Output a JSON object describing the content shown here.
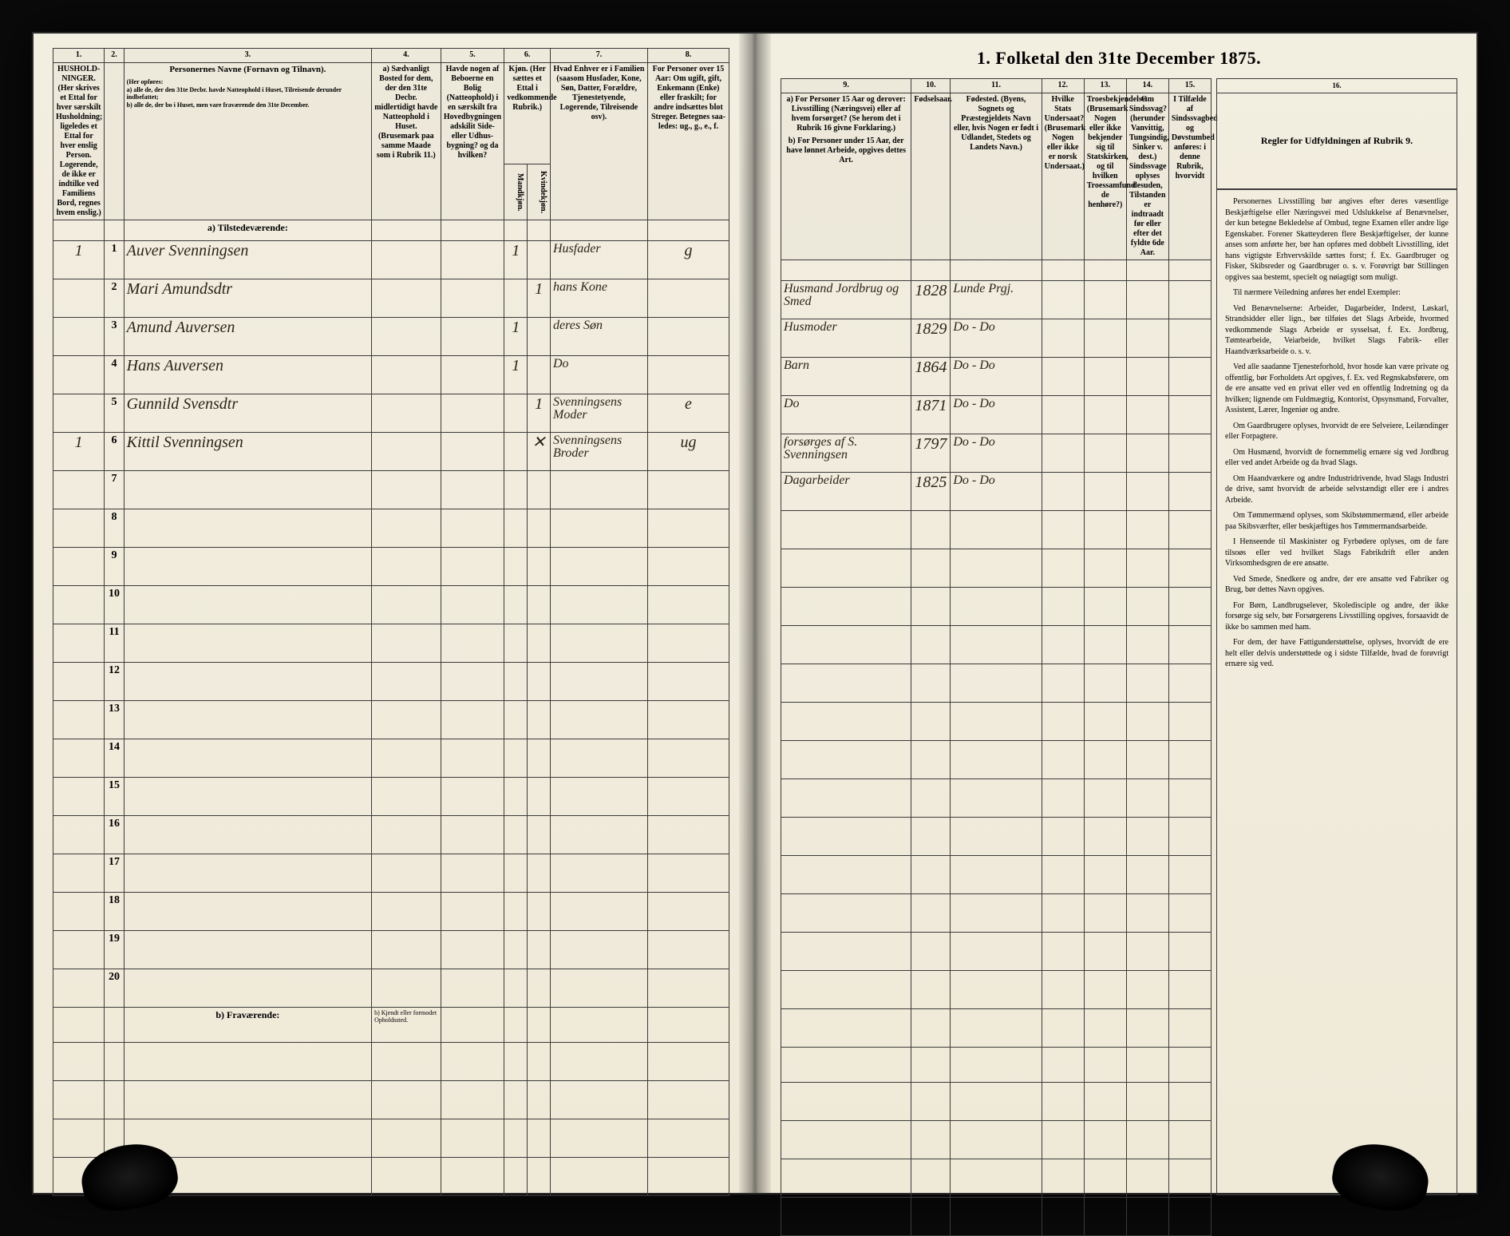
{
  "doc": {
    "title": "1. Folketal den 31te December 1875.",
    "section_a": "a) Tilstedeværende:",
    "section_b": "b) Fraværende:",
    "section_b_note": "b) Kjendt eller formodet Opholdssted."
  },
  "cols": {
    "c1": "1.",
    "c2": "2.",
    "c3": "3.",
    "c4": "4.",
    "c5": "5.",
    "c6": "6.",
    "c7": "7.",
    "c8": "8.",
    "c9": "9.",
    "c10": "10.",
    "c11": "11.",
    "c12": "12.",
    "c13": "13.",
    "c14": "14.",
    "c15": "15.",
    "c16": "16."
  },
  "headers": {
    "h1": "HUSHOLD-NINGER. (Her skrives et Ettal for hver særskilt Husholdning; ligeledes et Ettal for hver enslig Person. Logerende, de ikke er indtilke ved Familiens Bord, regnes hvem enslig.)",
    "h3_title": "Personernes Navne (Fornavn og Tilnavn).",
    "h3_sub": "(Her opføres:\na) alle de, der den 31te Decbr. havde Natteophold i Huset, Tilreisende derunder indbefattet;\nb) alle de, der bo i Huset, men vare fraværende den 31te December.",
    "h4": "a) Sædvanligt Bosted for dem, der den 31te Decbr. midlertidigt havde Natteophold i Huset. (Brusemark paa samme Maade som i Rubrik 11.)",
    "h5": "Havde nogen af Beboerne en Bolig (Natteophold) i en særskilt fra Hovedbygningen adskilit Side- eller Udhus-bygning? og da hvilken?",
    "h6": "Kjøn. (Her sættes et Ettal i vedkommende Rubrik.)",
    "h6a": "Mandkjøn.",
    "h6b": "Kvindekjøn.",
    "h7": "Hvad Enhver er i Familien (saasom Husfader, Kone, Søn, Datter, Forældre, Tjenestetyende, Logerende, Tilreisende osv).",
    "h8": "For Personer over 15 Aar: Om ugift, gift, Enkemann (Enke) eller fraskilt; for andre indsættes blot Streger. Betegnes saa-ledes: ug., g., e., f.",
    "h9a": "a) For Personer 15 Aar og derover: Livsstilling (Næringsvei) eller af hvem forsørget? (Se herom det i Rubrik 16 givne Forklaring.)",
    "h9b": "b) For Personer under 15 Aar, der have lønnet Arbeide, opgives dettes Art.",
    "h10": "Fødselsaar.",
    "h11": "Fødested. (Byens, Sognets og Præstegjeldets Navn eller, hvis Nogen er født i Udlandet, Stedets og Landets Navn.)",
    "h12": "Hvilke Stats Undersaat? (Brusemark Nogen eller ikke er norsk Undersaat.)",
    "h13": "Troesbekjendelse. (Brusemark Nogen eller ikke bekjender sig til Statskirken, og til hvilken Troessamfund de henhøre?)",
    "h14": "Om Sindssvag? (herunder Vanvittig, Tungsindig, Sinker v. dest.) Sindssvage oplyses desuden, Tilstanden er indtraadt før eller efter det fyldte 6de Aar.",
    "h15": "I Tilfælde af Sindssvagbed og Døvstumbed anføres: i denne Rubrik, hvorvidt",
    "h16": "Regler for Udfyldningen af Rubrik 9."
  },
  "rows": [
    {
      "hh": "1",
      "n": "1",
      "name": "Auver Svenningsen",
      "sex_m": "1",
      "sex_f": "",
      "rel": "Husfader",
      "civ": "g",
      "occ": "Husmand Jordbrug og Smed",
      "year": "1828",
      "place": "Lunde Prgj."
    },
    {
      "hh": "",
      "n": "2",
      "name": "Mari Amundsdtr",
      "sex_m": "",
      "sex_f": "1",
      "rel": "hans Kone",
      "civ": "",
      "occ": "Husmoder",
      "year": "1829",
      "place": "Do - Do"
    },
    {
      "hh": "",
      "n": "3",
      "name": "Amund Auversen",
      "sex_m": "1",
      "sex_f": "",
      "rel": "deres Søn",
      "civ": "",
      "occ": "Barn",
      "year": "1864",
      "place": "Do - Do"
    },
    {
      "hh": "",
      "n": "4",
      "name": "Hans Auversen",
      "sex_m": "1",
      "sex_f": "",
      "rel": "Do",
      "civ": "",
      "occ": "Do",
      "year": "1871",
      "place": "Do - Do"
    },
    {
      "hh": "",
      "n": "5",
      "name": "Gunnild Svensdtr",
      "sex_m": "",
      "sex_f": "1",
      "rel": "Svenningsens Moder",
      "civ": "e",
      "occ": "forsørges af S. Svenningsen",
      "year": "1797",
      "place": "Do - Do"
    },
    {
      "hh": "1",
      "n": "6",
      "name": "Kittil Svenningsen",
      "sex_m": "",
      "sex_f": "✕",
      "rel": "Svenningsens Broder",
      "civ": "ug",
      "occ": "Dagarbeider",
      "year": "1825",
      "place": "Do - Do"
    }
  ],
  "rownums": [
    "7",
    "8",
    "9",
    "10",
    "11",
    "12",
    "13",
    "14",
    "15",
    "16",
    "17",
    "18",
    "19",
    "20"
  ],
  "instructions": {
    "p1": "Personernes Livsstilling bør angives efter deres væsentlige Beskjæftigelse eller Næringsvei med Udslukkelse af Benævnelser, der kun betegne Bekledelse af Ombud, tegne Examen eller andre lige Egenskaber. Forener Skatteyderen flere Beskjæftigelser, der kunne anses som anførte her, bør han opføres med dobbelt Livsstilling, idet hans vigtigste Erhvervskilde sættes forst; f. Ex. Gaardbruger og Fisker, Skibsreder og Gaardbruger o. s. v. Forøvrigt bør Stillingen opgives saa bestemt, specielt og nøiagtigt som muligt.",
    "p2": "Til nærmere Veiledning anføres her endel Exempler:",
    "p3": "Ved Benævnelserne: Arbeider, Dagarbeider, Inderst, Løskarl, Strandsidder eller lign., bør tilføies det Slags Arbeide, hvormed vedkommende Slags Arbeide er sysselsat, f. Ex. Jordbrug, Tømtearbeide, Veiarbeide, hvilket Slags Fabrik- eller Haandværksarbeide o. s. v.",
    "p4": "Ved alle saadanne Tjenesteforhold, hvor hosde kan være private og offentlig, bør Forholdets Art opgives, f. Ex. ved Regnskabsførere, om de ere ansatte ved en privat eller ved en offentlig Indretning og da hvilken; lignende om Fuldmægtig, Kontorist, Opsynsmand, Forvalter, Assistent, Lærer, Ingeniør og andre.",
    "p5": "Om Gaardbrugere oplyses, hvorvidt de ere Selveiere, Leilændinger eller Forpagtere.",
    "p6": "Om Husmænd, hvorvidt de fornemmelig ernære sig ved Jordbrug eller ved andet Arbeide og da hvad Slags.",
    "p7": "Om Haandværkere og andre Industridrivende, hvad Slags Industri de drive, samt hvorvidt de arbeide selvstændigt eller ere i andres Arbeide.",
    "p8": "Om Tømmermænd oplyses, som Skibstømmermænd, eller arbeide paa Skibsværfter, eller beskjæftiges hos Tømmermandsarbeide.",
    "p9": "I Henseende til Maskinister og Fyrbødere oplyses, om de fare tilsoøs eller ved hvilket Slags Fabrikdrift eller anden Virksomhedsgren de ere ansatte.",
    "p10": "Ved Smede, Snedkere og andre, der ere ansatte ved Fabriker og Brug, bør dettes Navn opgives.",
    "p11": "For Børn, Landbrugselever, Skoledisciple og andre, der ikke forsørge sig selv, bør Forsørgerens Livsstilling opgives, forsaavidt de ikke bo sammen med ham.",
    "p12": "For dem, der have Fattigunderstøttelse, oplyses, hvorvidt de ere helt eller delvis understøttede og i sidste Tilfælde, hvad de forøvrigt ernære sig ved."
  }
}
